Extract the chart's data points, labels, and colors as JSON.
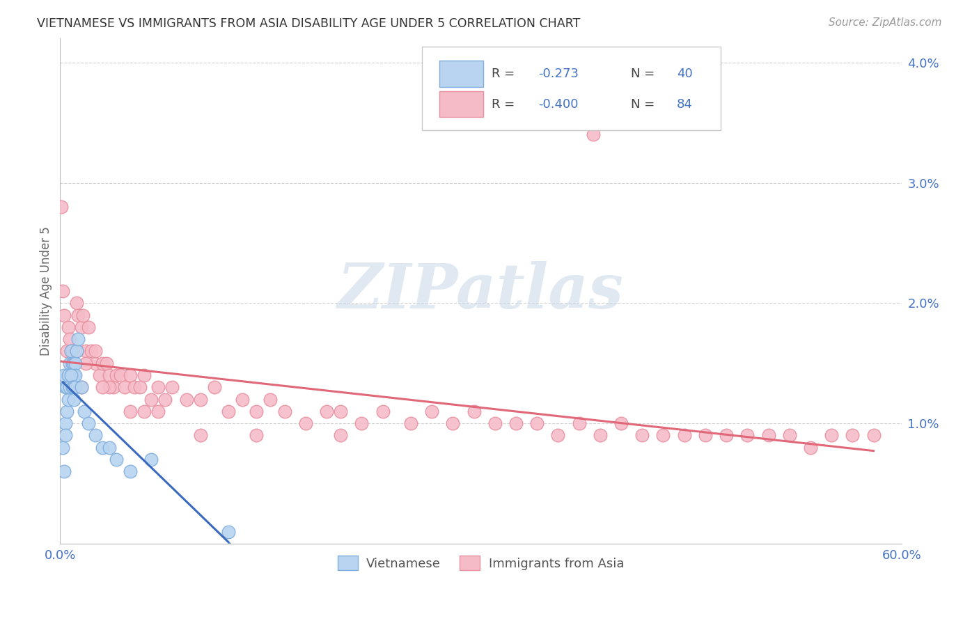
{
  "title": "VIETNAMESE VS IMMIGRANTS FROM ASIA DISABILITY AGE UNDER 5 CORRELATION CHART",
  "source": "Source: ZipAtlas.com",
  "ylabel": "Disability Age Under 5",
  "xlim": [
    0.0,
    0.6
  ],
  "ylim": [
    0.0,
    0.042
  ],
  "yticks": [
    0.0,
    0.01,
    0.02,
    0.03,
    0.04
  ],
  "ytick_labels": [
    "",
    "1.0%",
    "2.0%",
    "3.0%",
    "4.0%"
  ],
  "xtick_positions": [
    0.0,
    0.12,
    0.24,
    0.36,
    0.48,
    0.6
  ],
  "xtick_labels": [
    "0.0%",
    "",
    "",
    "",
    "",
    "60.0%"
  ],
  "background_color": "#ffffff",
  "grid_color": "#d0d0d0",
  "viet_color_face": "#b8d4f0",
  "viet_color_edge": "#80aedd",
  "asia_color_face": "#f5bcc8",
  "asia_color_edge": "#e890a0",
  "viet_line_color": "#3a6abf",
  "asia_line_color": "#e06878",
  "viet_R": -0.273,
  "viet_N": 40,
  "asia_R": -0.4,
  "asia_N": 84,
  "watermark": "ZIPatlas",
  "viet_x": [
    0.002,
    0.003,
    0.004,
    0.004,
    0.005,
    0.005,
    0.006,
    0.006,
    0.007,
    0.007,
    0.008,
    0.008,
    0.009,
    0.009,
    0.01,
    0.01,
    0.011,
    0.011,
    0.012,
    0.013,
    0.003,
    0.004,
    0.005,
    0.006,
    0.007,
    0.008,
    0.009,
    0.01,
    0.01,
    0.011,
    0.015,
    0.017,
    0.02,
    0.025,
    0.03,
    0.035,
    0.04,
    0.05,
    0.065,
    0.12
  ],
  "viet_y": [
    0.008,
    0.006,
    0.01,
    0.009,
    0.013,
    0.011,
    0.014,
    0.012,
    0.015,
    0.014,
    0.016,
    0.014,
    0.015,
    0.014,
    0.015,
    0.014,
    0.015,
    0.014,
    0.016,
    0.017,
    0.014,
    0.013,
    0.013,
    0.014,
    0.013,
    0.014,
    0.013,
    0.013,
    0.012,
    0.013,
    0.013,
    0.011,
    0.01,
    0.009,
    0.008,
    0.008,
    0.007,
    0.006,
    0.007,
    0.001
  ],
  "asia_x": [
    0.001,
    0.002,
    0.003,
    0.005,
    0.006,
    0.007,
    0.008,
    0.009,
    0.01,
    0.011,
    0.012,
    0.013,
    0.015,
    0.016,
    0.018,
    0.02,
    0.022,
    0.025,
    0.028,
    0.03,
    0.033,
    0.035,
    0.038,
    0.04,
    0.043,
    0.046,
    0.05,
    0.053,
    0.057,
    0.06,
    0.065,
    0.07,
    0.075,
    0.08,
    0.09,
    0.1,
    0.11,
    0.12,
    0.13,
    0.14,
    0.15,
    0.16,
    0.175,
    0.19,
    0.2,
    0.215,
    0.23,
    0.25,
    0.265,
    0.28,
    0.295,
    0.31,
    0.325,
    0.34,
    0.355,
    0.37,
    0.385,
    0.4,
    0.415,
    0.43,
    0.445,
    0.46,
    0.475,
    0.49,
    0.505,
    0.52,
    0.535,
    0.55,
    0.565,
    0.58,
    0.008,
    0.012,
    0.018,
    0.025,
    0.035,
    0.05,
    0.07,
    0.1,
    0.14,
    0.2,
    0.015,
    0.03,
    0.06,
    0.38
  ],
  "asia_y": [
    0.028,
    0.021,
    0.019,
    0.016,
    0.018,
    0.017,
    0.016,
    0.016,
    0.015,
    0.016,
    0.02,
    0.019,
    0.018,
    0.019,
    0.016,
    0.018,
    0.016,
    0.015,
    0.014,
    0.015,
    0.015,
    0.014,
    0.013,
    0.014,
    0.014,
    0.013,
    0.014,
    0.013,
    0.013,
    0.014,
    0.012,
    0.013,
    0.012,
    0.013,
    0.012,
    0.012,
    0.013,
    0.011,
    0.012,
    0.011,
    0.012,
    0.011,
    0.01,
    0.011,
    0.011,
    0.01,
    0.011,
    0.01,
    0.011,
    0.01,
    0.011,
    0.01,
    0.01,
    0.01,
    0.009,
    0.01,
    0.009,
    0.01,
    0.009,
    0.009,
    0.009,
    0.009,
    0.009,
    0.009,
    0.009,
    0.009,
    0.008,
    0.009,
    0.009,
    0.009,
    0.015,
    0.016,
    0.015,
    0.016,
    0.013,
    0.011,
    0.011,
    0.009,
    0.009,
    0.009,
    0.013,
    0.013,
    0.011,
    0.034
  ]
}
